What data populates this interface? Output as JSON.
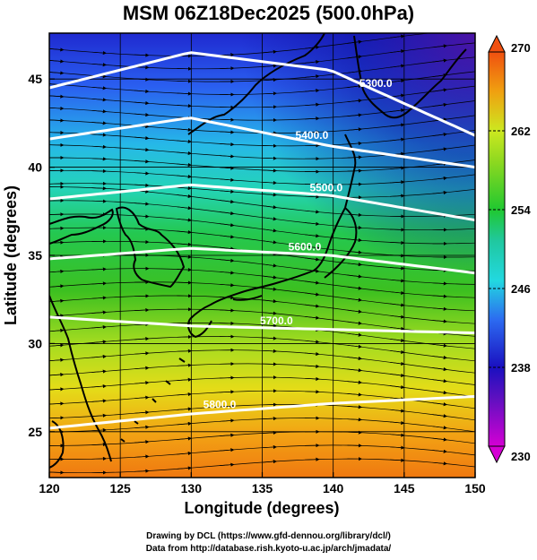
{
  "title": "MSM 06Z18Dec2025 (500.0hPa)",
  "axes": {
    "xlabel": "Longitude (degrees)",
    "ylabel": "Latitude  (degrees)",
    "xticks": [
      "120",
      "125",
      "130",
      "135",
      "140",
      "145",
      "150"
    ],
    "yticks": [
      "25",
      "30",
      "35",
      "40",
      "45"
    ],
    "xlim": [
      120,
      150
    ],
    "ylim": [
      22.4,
      47.6
    ]
  },
  "colorbar": {
    "ticks": [
      "270",
      "262",
      "254",
      "246",
      "238",
      "230"
    ],
    "range": [
      230,
      270
    ],
    "colors": [
      "#d400d4",
      "#1a10c0",
      "#2c6af0",
      "#22d8e0",
      "#20c830",
      "#cce820",
      "#f0a010",
      "#f05010"
    ]
  },
  "contours": [
    {
      "label": "5300.0"
    },
    {
      "label": "5400.0"
    },
    {
      "label": "5500.0"
    },
    {
      "label": "5600.0"
    },
    {
      "label": "5700.0"
    },
    {
      "label": "5800.0"
    }
  ],
  "credits": {
    "line1": "Drawing by DCL (https://www.gfd-dennou.org/library/dcl/)",
    "line2": "Data from http://database.rish.kyoto-u.ac.jp/arch/jmadata/"
  }
}
